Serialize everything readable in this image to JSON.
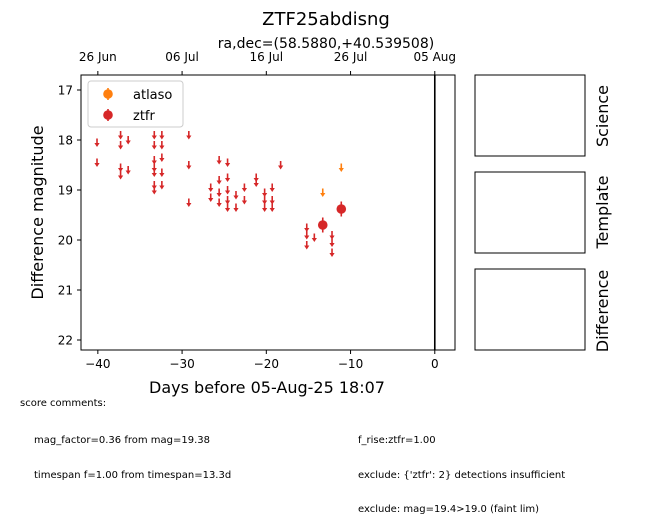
{
  "figure": {
    "title": "ZTF25abdisng",
    "subtitle": "ra,dec=(58.5880,+40.539508)"
  },
  "chart_data": {
    "type": "scatter",
    "xlabel": "Days before 05-Aug-25 18:07",
    "ylabel": "Difference magnitude",
    "xlim": [
      -42,
      2.4
    ],
    "ylim": [
      22.2,
      16.7
    ],
    "x_inverted": false,
    "y_inverted": true,
    "x_ticks": [
      -40,
      -30,
      -20,
      -10,
      0
    ],
    "y_ticks": [
      17,
      18,
      19,
      20,
      21,
      22
    ],
    "top_axis_ticks": [
      {
        "label": "26 Jun",
        "x": -40
      },
      {
        "label": "06 Jul",
        "x": -30
      },
      {
        "label": "16 Jul",
        "x": -20
      },
      {
        "label": "26 Jul",
        "x": -10
      },
      {
        "label": "05 Aug",
        "x": 0
      }
    ],
    "vertical_line_x": 0,
    "legend": {
      "location": "top-left",
      "entries": [
        "atlaso",
        "ztfr"
      ]
    },
    "series": [
      {
        "name": "atlaso",
        "color": "#ff7f0e",
        "kind": "upper_limit",
        "points": [
          [
            -13.3,
            19.05
          ],
          [
            -11.1,
            18.55
          ]
        ]
      },
      {
        "name": "ztfr",
        "color": "#d62728",
        "kind": "upper_limit",
        "points": [
          [
            -40.1,
            18.05
          ],
          [
            -40.1,
            18.45
          ],
          [
            -37.3,
            17.9
          ],
          [
            -37.3,
            18.1
          ],
          [
            -37.3,
            18.55
          ],
          [
            -37.3,
            18.7
          ],
          [
            -36.4,
            18.0
          ],
          [
            -36.4,
            18.6
          ],
          [
            -33.3,
            17.9
          ],
          [
            -33.3,
            18.1
          ],
          [
            -33.3,
            18.4
          ],
          [
            -33.3,
            18.55
          ],
          [
            -33.3,
            18.65
          ],
          [
            -33.3,
            18.9
          ],
          [
            -33.3,
            19.0
          ],
          [
            -32.4,
            17.9
          ],
          [
            -32.4,
            18.1
          ],
          [
            -32.4,
            18.35
          ],
          [
            -32.4,
            18.65
          ],
          [
            -32.4,
            18.9
          ],
          [
            -29.2,
            17.9
          ],
          [
            -29.2,
            18.5
          ],
          [
            -29.2,
            19.25
          ],
          [
            -26.6,
            18.95
          ],
          [
            -26.6,
            19.15
          ],
          [
            -25.6,
            18.4
          ],
          [
            -25.6,
            18.8
          ],
          [
            -25.6,
            19.05
          ],
          [
            -25.6,
            19.25
          ],
          [
            -24.6,
            18.45
          ],
          [
            -24.6,
            18.75
          ],
          [
            -24.6,
            19.0
          ],
          [
            -24.6,
            19.2
          ],
          [
            -24.6,
            19.35
          ],
          [
            -23.6,
            19.1
          ],
          [
            -23.6,
            19.35
          ],
          [
            -22.6,
            18.95
          ],
          [
            -22.6,
            19.2
          ],
          [
            -21.2,
            18.75
          ],
          [
            -21.2,
            18.85
          ],
          [
            -20.2,
            19.05
          ],
          [
            -20.2,
            19.2
          ],
          [
            -20.2,
            19.35
          ],
          [
            -19.3,
            18.95
          ],
          [
            -19.3,
            19.2
          ],
          [
            -19.3,
            19.35
          ],
          [
            -18.3,
            18.5
          ],
          [
            -15.2,
            19.75
          ],
          [
            -15.2,
            19.9
          ],
          [
            -15.2,
            20.1
          ],
          [
            -14.3,
            19.95
          ],
          [
            -12.2,
            19.9
          ],
          [
            -12.2,
            20.05
          ],
          [
            -12.2,
            20.25
          ]
        ]
      },
      {
        "name": "ztfr",
        "color": "#d62728",
        "kind": "detection",
        "points": [
          [
            -13.3,
            19.7,
            0.15
          ],
          [
            -11.1,
            19.38,
            0.15
          ]
        ]
      }
    ]
  },
  "cutouts": {
    "science": "Science",
    "template": "Template",
    "difference": "Difference"
  },
  "comments": {
    "header": "score comments:",
    "left": [
      "mag_factor=0.36 from mag=19.38",
      "timespan f=1.00 from timespan=13.3d"
    ],
    "right": [
      "f_rise:ztfr=1.00",
      "exclude: {'ztfr': 2} detections insufficient",
      "exclude: mag=19.4>19.0 (faint lim)"
    ]
  }
}
